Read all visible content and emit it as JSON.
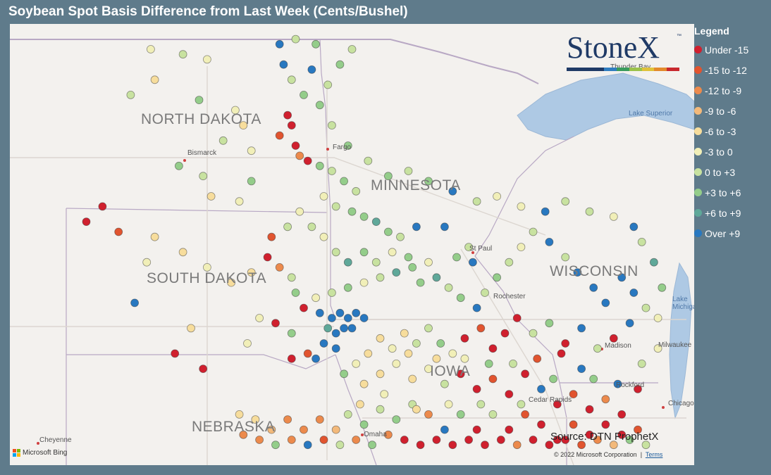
{
  "title": "Soybean Spot Basis Difference from Last Week (Cents/Bushel)",
  "legend": {
    "title": "Legend",
    "items": [
      {
        "label": "Under -15",
        "color": "#d0202e"
      },
      {
        "label": "-15 to -12",
        "color": "#e1542f"
      },
      {
        "label": "-12 to -9",
        "color": "#ec8a4c"
      },
      {
        "label": "-9 to -6",
        "color": "#f3b97a"
      },
      {
        "label": "-6 to -3",
        "color": "#f7dd9c"
      },
      {
        "label": "-3 to 0",
        "color": "#f1efb8"
      },
      {
        "label": "0 to +3",
        "color": "#c8e2a0"
      },
      {
        "label": "+3 to +6",
        "color": "#94cd8a"
      },
      {
        "label": "+6 to +9",
        "color": "#5fa899"
      },
      {
        "label": "Over +9",
        "color": "#2878c0"
      }
    ]
  },
  "map": {
    "states": [
      "NORTH DAKOTA",
      "MINNESOTA",
      "SOUTH DAKOTA",
      "WISCONSIN",
      "IOWA",
      "NEBRASKA"
    ],
    "cities": [
      "Bismarck",
      "Fargo",
      "St Paul",
      "Rochester",
      "Madison",
      "Milwaukee",
      "Rockford",
      "Cedar Rapids",
      "Omaha",
      "Chicago",
      "Cheyenne",
      "Thunder Bay"
    ],
    "lakes": [
      "Lake Superior",
      "Lake Michigan"
    ],
    "source_text": "Source: DTN ProphetX",
    "copyright_text": "© 2022 Microsoft Corporation",
    "terms_text": "Terms",
    "bing_text": "Microsoft Bing"
  },
  "logo": {
    "text": "StoneX",
    "tm": "™",
    "stripe_colors": [
      "#1f3a66",
      "#1f3a66",
      "#1f3a66",
      "#2f7ec0",
      "#3a9c5c",
      "#9cc24a",
      "#e0c23a",
      "#e38a2c",
      "#c8282e"
    ]
  },
  "markers": [
    {
      "lon": -100.5,
      "lat": 48.8,
      "cat": 5
    },
    {
      "lon": -99.7,
      "lat": 48.7,
      "cat": 6
    },
    {
      "lon": -99.1,
      "lat": 48.6,
      "cat": 5
    },
    {
      "lon": -100.4,
      "lat": 48.2,
      "cat": 4
    },
    {
      "lon": -101.0,
      "lat": 47.9,
      "cat": 6
    },
    {
      "lon": -99.3,
      "lat": 47.8,
      "cat": 7
    },
    {
      "lon": -98.4,
      "lat": 47.6,
      "cat": 5
    },
    {
      "lon": -98.2,
      "lat": 47.3,
      "cat": 4
    },
    {
      "lon": -98.7,
      "lat": 47.0,
      "cat": 6
    },
    {
      "lon": -98.0,
      "lat": 46.8,
      "cat": 5
    },
    {
      "lon": -99.8,
      "lat": 46.5,
      "cat": 7
    },
    {
      "lon": -99.2,
      "lat": 46.3,
      "cat": 6
    },
    {
      "lon": -98.0,
      "lat": 46.2,
      "cat": 7
    },
    {
      "lon": -99.0,
      "lat": 45.9,
      "cat": 4
    },
    {
      "lon": -98.3,
      "lat": 45.8,
      "cat": 5
    },
    {
      "lon": -97.3,
      "lat": 48.9,
      "cat": 9
    },
    {
      "lon": -97.2,
      "lat": 48.5,
      "cat": 9
    },
    {
      "lon": -96.5,
      "lat": 48.4,
      "cat": 9
    },
    {
      "lon": -97.0,
      "lat": 48.2,
      "cat": 6
    },
    {
      "lon": -96.7,
      "lat": 47.9,
      "cat": 7
    },
    {
      "lon": -97.1,
      "lat": 47.5,
      "cat": 0
    },
    {
      "lon": -97.0,
      "lat": 47.3,
      "cat": 0
    },
    {
      "lon": -97.3,
      "lat": 47.1,
      "cat": 1
    },
    {
      "lon": -96.9,
      "lat": 46.9,
      "cat": 0
    },
    {
      "lon": -96.8,
      "lat": 46.7,
      "cat": 2
    },
    {
      "lon": -96.6,
      "lat": 46.6,
      "cat": 0
    },
    {
      "lon": -96.3,
      "lat": 46.5,
      "cat": 7
    },
    {
      "lon": -96.0,
      "lat": 46.4,
      "cat": 6
    },
    {
      "lon": -95.7,
      "lat": 46.2,
      "cat": 7
    },
    {
      "lon": -95.4,
      "lat": 46.0,
      "cat": 6
    },
    {
      "lon": -96.2,
      "lat": 45.9,
      "cat": 5
    },
    {
      "lon": -95.9,
      "lat": 45.7,
      "cat": 6
    },
    {
      "lon": -95.5,
      "lat": 45.6,
      "cat": 7
    },
    {
      "lon": -95.2,
      "lat": 45.5,
      "cat": 7
    },
    {
      "lon": -94.9,
      "lat": 45.4,
      "cat": 8
    },
    {
      "lon": -94.6,
      "lat": 45.2,
      "cat": 7
    },
    {
      "lon": -94.3,
      "lat": 45.1,
      "cat": 6
    },
    {
      "lon": -93.9,
      "lat": 45.3,
      "cat": 9
    },
    {
      "lon": -93.2,
      "lat": 45.3,
      "cat": 9
    },
    {
      "lon": -92.6,
      "lat": 44.9,
      "cat": 6
    },
    {
      "lon": -92.9,
      "lat": 44.7,
      "cat": 7
    },
    {
      "lon": -92.5,
      "lat": 44.6,
      "cat": 9
    },
    {
      "lon": -93.6,
      "lat": 44.6,
      "cat": 5
    },
    {
      "lon": -94.0,
      "lat": 44.5,
      "cat": 7
    },
    {
      "lon": -94.4,
      "lat": 44.4,
      "cat": 8
    },
    {
      "lon": -94.8,
      "lat": 44.3,
      "cat": 6
    },
    {
      "lon": -95.2,
      "lat": 44.2,
      "cat": 5
    },
    {
      "lon": -95.6,
      "lat": 44.1,
      "cat": 7
    },
    {
      "lon": -96.0,
      "lat": 44.0,
      "cat": 6
    },
    {
      "lon": -96.4,
      "lat": 43.9,
      "cat": 5
    },
    {
      "lon": -96.7,
      "lat": 43.7,
      "cat": 0
    },
    {
      "lon": -96.3,
      "lat": 43.6,
      "cat": 9
    },
    {
      "lon": -96.0,
      "lat": 43.5,
      "cat": 9
    },
    {
      "lon": -95.8,
      "lat": 43.6,
      "cat": 9
    },
    {
      "lon": -95.6,
      "lat": 43.5,
      "cat": 9
    },
    {
      "lon": -95.4,
      "lat": 43.6,
      "cat": 9
    },
    {
      "lon": -95.2,
      "lat": 43.5,
      "cat": 9
    },
    {
      "lon": -95.7,
      "lat": 43.3,
      "cat": 9
    },
    {
      "lon": -95.5,
      "lat": 43.3,
      "cat": 9
    },
    {
      "lon": -95.9,
      "lat": 43.2,
      "cat": 9
    },
    {
      "lon": -96.1,
      "lat": 43.3,
      "cat": 8
    },
    {
      "lon": -96.2,
      "lat": 43.0,
      "cat": 9
    },
    {
      "lon": -95.9,
      "lat": 42.9,
      "cat": 9
    },
    {
      "lon": -96.4,
      "lat": 42.7,
      "cat": 9
    },
    {
      "lon": -96.6,
      "lat": 42.8,
      "cat": 1
    },
    {
      "lon": -97.0,
      "lat": 43.2,
      "cat": 7
    },
    {
      "lon": -97.4,
      "lat": 43.4,
      "cat": 0
    },
    {
      "lon": -97.8,
      "lat": 43.5,
      "cat": 5
    },
    {
      "lon": -97.0,
      "lat": 42.7,
      "cat": 0
    },
    {
      "lon": -98.1,
      "lat": 43.0,
      "cat": 5
    },
    {
      "lon": -99.5,
      "lat": 43.3,
      "cat": 4
    },
    {
      "lon": -100.9,
      "lat": 43.8,
      "cat": 9
    },
    {
      "lon": -99.9,
      "lat": 42.8,
      "cat": 0
    },
    {
      "lon": -99.2,
      "lat": 42.5,
      "cat": 0
    },
    {
      "lon": -101.7,
      "lat": 45.7,
      "cat": 0
    },
    {
      "lon": -102.1,
      "lat": 45.4,
      "cat": 0
    },
    {
      "lon": -101.3,
      "lat": 45.2,
      "cat": 1
    },
    {
      "lon": -100.4,
      "lat": 45.1,
      "cat": 4
    },
    {
      "lon": -100.6,
      "lat": 44.6,
      "cat": 5
    },
    {
      "lon": -99.7,
      "lat": 44.8,
      "cat": 4
    },
    {
      "lon": -99.1,
      "lat": 44.5,
      "cat": 5
    },
    {
      "lon": -98.5,
      "lat": 44.2,
      "cat": 4
    },
    {
      "lon": -98.0,
      "lat": 44.4,
      "cat": 4
    },
    {
      "lon": -97.6,
      "lat": 44.7,
      "cat": 0
    },
    {
      "lon": -97.3,
      "lat": 44.5,
      "cat": 2
    },
    {
      "lon": -97.0,
      "lat": 44.3,
      "cat": 6
    },
    {
      "lon": -96.9,
      "lat": 44.0,
      "cat": 7
    },
    {
      "lon": -97.5,
      "lat": 45.1,
      "cat": 1
    },
    {
      "lon": -97.1,
      "lat": 45.3,
      "cat": 6
    },
    {
      "lon": -96.8,
      "lat": 45.6,
      "cat": 5
    },
    {
      "lon": -96.5,
      "lat": 45.3,
      "cat": 6
    },
    {
      "lon": -96.2,
      "lat": 45.1,
      "cat": 5
    },
    {
      "lon": -95.9,
      "lat": 44.8,
      "cat": 6
    },
    {
      "lon": -95.6,
      "lat": 44.6,
      "cat": 8
    },
    {
      "lon": -95.2,
      "lat": 44.8,
      "cat": 7
    },
    {
      "lon": -94.9,
      "lat": 44.6,
      "cat": 6
    },
    {
      "lon": -94.5,
      "lat": 44.8,
      "cat": 5
    },
    {
      "lon": -94.1,
      "lat": 44.7,
      "cat": 7
    },
    {
      "lon": -93.8,
      "lat": 44.2,
      "cat": 7
    },
    {
      "lon": -93.4,
      "lat": 44.3,
      "cat": 8
    },
    {
      "lon": -93.1,
      "lat": 44.1,
      "cat": 6
    },
    {
      "lon": -92.8,
      "lat": 43.9,
      "cat": 7
    },
    {
      "lon": -92.4,
      "lat": 43.7,
      "cat": 9
    },
    {
      "lon": -92.2,
      "lat": 44.0,
      "cat": 6
    },
    {
      "lon": -91.9,
      "lat": 44.3,
      "cat": 7
    },
    {
      "lon": -91.6,
      "lat": 44.6,
      "cat": 6
    },
    {
      "lon": -91.3,
      "lat": 44.9,
      "cat": 5
    },
    {
      "lon": -91.0,
      "lat": 45.2,
      "cat": 6
    },
    {
      "lon": -90.6,
      "lat": 45.0,
      "cat": 9
    },
    {
      "lon": -90.2,
      "lat": 44.7,
      "cat": 6
    },
    {
      "lon": -89.9,
      "lat": 44.4,
      "cat": 9
    },
    {
      "lon": -89.5,
      "lat": 44.1,
      "cat": 9
    },
    {
      "lon": -89.2,
      "lat": 43.8,
      "cat": 9
    },
    {
      "lon": -88.8,
      "lat": 44.3,
      "cat": 9
    },
    {
      "lon": -88.5,
      "lat": 44.0,
      "cat": 9
    },
    {
      "lon": -88.2,
      "lat": 43.7,
      "cat": 6
    },
    {
      "lon": -88.6,
      "lat": 43.4,
      "cat": 9
    },
    {
      "lon": -89.0,
      "lat": 43.1,
      "cat": 0
    },
    {
      "lon": -89.4,
      "lat": 42.9,
      "cat": 6
    },
    {
      "lon": -89.8,
      "lat": 43.3,
      "cat": 9
    },
    {
      "lon": -90.2,
      "lat": 43.0,
      "cat": 0
    },
    {
      "lon": -90.6,
      "lat": 43.4,
      "cat": 7
    },
    {
      "lon": -91.0,
      "lat": 43.2,
      "cat": 6
    },
    {
      "lon": -91.4,
      "lat": 43.5,
      "cat": 0
    },
    {
      "lon": -91.7,
      "lat": 43.2,
      "cat": 0
    },
    {
      "lon": -92.0,
      "lat": 42.9,
      "cat": 0
    },
    {
      "lon": -92.3,
      "lat": 43.3,
      "cat": 1
    },
    {
      "lon": -92.7,
      "lat": 43.1,
      "cat": 0
    },
    {
      "lon": -93.0,
      "lat": 42.8,
      "cat": 5
    },
    {
      "lon": -93.3,
      "lat": 43.0,
      "cat": 7
    },
    {
      "lon": -93.6,
      "lat": 43.3,
      "cat": 6
    },
    {
      "lon": -93.9,
      "lat": 43.0,
      "cat": 6
    },
    {
      "lon": -94.2,
      "lat": 43.2,
      "cat": 4
    },
    {
      "lon": -94.5,
      "lat": 42.9,
      "cat": 5
    },
    {
      "lon": -94.8,
      "lat": 43.1,
      "cat": 4
    },
    {
      "lon": -95.1,
      "lat": 42.8,
      "cat": 4
    },
    {
      "lon": -95.4,
      "lat": 42.6,
      "cat": 5
    },
    {
      "lon": -95.7,
      "lat": 42.4,
      "cat": 7
    },
    {
      "lon": -95.2,
      "lat": 42.2,
      "cat": 4
    },
    {
      "lon": -94.8,
      "lat": 42.4,
      "cat": 4
    },
    {
      "lon": -94.4,
      "lat": 42.6,
      "cat": 5
    },
    {
      "lon": -94.0,
      "lat": 42.3,
      "cat": 4
    },
    {
      "lon": -93.6,
      "lat": 42.5,
      "cat": 5
    },
    {
      "lon": -93.2,
      "lat": 42.2,
      "cat": 6
    },
    {
      "lon": -92.8,
      "lat": 42.4,
      "cat": 0
    },
    {
      "lon": -92.4,
      "lat": 42.1,
      "cat": 0
    },
    {
      "lon": -92.0,
      "lat": 42.3,
      "cat": 1
    },
    {
      "lon": -91.6,
      "lat": 42.0,
      "cat": 0
    },
    {
      "lon": -91.2,
      "lat": 42.4,
      "cat": 0
    },
    {
      "lon": -90.8,
      "lat": 42.1,
      "cat": 9
    },
    {
      "lon": -90.4,
      "lat": 41.8,
      "cat": 0
    },
    {
      "lon": -90.0,
      "lat": 42.0,
      "cat": 1
    },
    {
      "lon": -89.6,
      "lat": 41.7,
      "cat": 0
    },
    {
      "lon": -89.2,
      "lat": 41.9,
      "cat": 2
    },
    {
      "lon": -88.8,
      "lat": 41.6,
      "cat": 0
    },
    {
      "lon": -88.4,
      "lat": 41.3,
      "cat": 1
    },
    {
      "lon": -88.8,
      "lat": 41.2,
      "cat": 0
    },
    {
      "lon": -89.2,
      "lat": 41.4,
      "cat": 0
    },
    {
      "lon": -89.6,
      "lat": 41.2,
      "cat": 0
    },
    {
      "lon": -90.0,
      "lat": 41.4,
      "cat": 1
    },
    {
      "lon": -90.4,
      "lat": 41.1,
      "cat": 0
    },
    {
      "lon": -90.8,
      "lat": 41.4,
      "cat": 0
    },
    {
      "lon": -91.2,
      "lat": 41.6,
      "cat": 1
    },
    {
      "lon": -91.6,
      "lat": 41.3,
      "cat": 0
    },
    {
      "lon": -92.0,
      "lat": 41.6,
      "cat": 6
    },
    {
      "lon": -92.4,
      "lat": 41.3,
      "cat": 0
    },
    {
      "lon": -92.8,
      "lat": 41.6,
      "cat": 7
    },
    {
      "lon": -93.2,
      "lat": 41.3,
      "cat": 9
    },
    {
      "lon": -93.6,
      "lat": 41.6,
      "cat": 2
    },
    {
      "lon": -94.0,
      "lat": 41.8,
      "cat": 6
    },
    {
      "lon": -94.4,
      "lat": 41.5,
      "cat": 7
    },
    {
      "lon": -94.8,
      "lat": 41.7,
      "cat": 6
    },
    {
      "lon": -95.2,
      "lat": 41.4,
      "cat": 7
    },
    {
      "lon": -95.6,
      "lat": 41.6,
      "cat": 6
    },
    {
      "lon": -95.9,
      "lat": 41.3,
      "cat": 3
    },
    {
      "lon": -96.3,
      "lat": 41.5,
      "cat": 2
    },
    {
      "lon": -96.7,
      "lat": 41.3,
      "cat": 2
    },
    {
      "lon": -97.1,
      "lat": 41.5,
      "cat": 2
    },
    {
      "lon": -97.5,
      "lat": 41.3,
      "cat": 3
    },
    {
      "lon": -97.9,
      "lat": 41.5,
      "cat": 4
    },
    {
      "lon": -98.3,
      "lat": 41.6,
      "cat": 4
    },
    {
      "lon": -98.2,
      "lat": 41.2,
      "cat": 2
    },
    {
      "lon": -97.8,
      "lat": 41.1,
      "cat": 2
    },
    {
      "lon": -97.4,
      "lat": 41.0,
      "cat": 7
    },
    {
      "lon": -97.0,
      "lat": 41.1,
      "cat": 2
    },
    {
      "lon": -96.6,
      "lat": 41.0,
      "cat": 9
    },
    {
      "lon": -96.2,
      "lat": 41.1,
      "cat": 1
    },
    {
      "lon": -95.8,
      "lat": 41.0,
      "cat": 6
    },
    {
      "lon": -95.4,
      "lat": 41.1,
      "cat": 2
    },
    {
      "lon": -95.0,
      "lat": 41.0,
      "cat": 7
    },
    {
      "lon": -94.6,
      "lat": 41.2,
      "cat": 2
    },
    {
      "lon": -94.2,
      "lat": 41.1,
      "cat": 0
    },
    {
      "lon": -93.8,
      "lat": 41.0,
      "cat": 0
    },
    {
      "lon": -93.4,
      "lat": 41.1,
      "cat": 0
    },
    {
      "lon": -93.0,
      "lat": 41.0,
      "cat": 0
    },
    {
      "lon": -92.6,
      "lat": 41.1,
      "cat": 0
    },
    {
      "lon": -92.2,
      "lat": 41.0,
      "cat": 0
    },
    {
      "lon": -91.8,
      "lat": 41.1,
      "cat": 0
    },
    {
      "lon": -91.4,
      "lat": 41.0,
      "cat": 2
    },
    {
      "lon": -91.0,
      "lat": 41.1,
      "cat": 0
    },
    {
      "lon": -90.6,
      "lat": 41.0,
      "cat": 0
    },
    {
      "lon": -90.2,
      "lat": 41.1,
      "cat": 0
    },
    {
      "lon": -89.8,
      "lat": 41.0,
      "cat": 1
    },
    {
      "lon": -89.4,
      "lat": 41.1,
      "cat": 2
    },
    {
      "lon": -89.0,
      "lat": 41.0,
      "cat": 3
    },
    {
      "lon": -88.6,
      "lat": 41.1,
      "cat": 7
    },
    {
      "lon": -88.2,
      "lat": 41.0,
      "cat": 6
    },
    {
      "lon": -89.8,
      "lat": 42.5,
      "cat": 9
    },
    {
      "lon": -90.3,
      "lat": 42.8,
      "cat": 0
    },
    {
      "lon": -90.9,
      "lat": 42.7,
      "cat": 1
    },
    {
      "lon": -91.5,
      "lat": 42.6,
      "cat": 6
    },
    {
      "lon": -92.1,
      "lat": 42.6,
      "cat": 7
    },
    {
      "lon": -92.7,
      "lat": 42.7,
      "cat": 5
    },
    {
      "lon": -93.4,
      "lat": 42.7,
      "cat": 4
    },
    {
      "lon": -94.1,
      "lat": 42.8,
      "cat": 4
    },
    {
      "lon": -94.7,
      "lat": 42.0,
      "cat": 5
    },
    {
      "lon": -95.3,
      "lat": 41.8,
      "cat": 4
    },
    {
      "lon": -93.9,
      "lat": 41.7,
      "cat": 4
    },
    {
      "lon": -93.1,
      "lat": 41.8,
      "cat": 5
    },
    {
      "lon": -92.3,
      "lat": 41.8,
      "cat": 6
    },
    {
      "lon": -91.3,
      "lat": 41.8,
      "cat": 6
    },
    {
      "lon": -90.5,
      "lat": 42.3,
      "cat": 7
    },
    {
      "lon": -89.5,
      "lat": 42.3,
      "cat": 7
    },
    {
      "lon": -88.9,
      "lat": 42.2,
      "cat": 9
    },
    {
      "lon": -88.4,
      "lat": 42.1,
      "cat": 0
    },
    {
      "lon": -88.3,
      "lat": 42.6,
      "cat": 6
    },
    {
      "lon": -87.9,
      "lat": 42.9,
      "cat": 5
    },
    {
      "lon": -87.9,
      "lat": 43.5,
      "cat": 5
    },
    {
      "lon": -87.8,
      "lat": 44.1,
      "cat": 7
    },
    {
      "lon": -88.0,
      "lat": 44.6,
      "cat": 8
    },
    {
      "lon": -88.3,
      "lat": 45.0,
      "cat": 6
    },
    {
      "lon": -88.5,
      "lat": 45.3,
      "cat": 9
    },
    {
      "lon": -89.0,
      "lat": 45.5,
      "cat": 5
    },
    {
      "lon": -89.6,
      "lat": 45.6,
      "cat": 6
    },
    {
      "lon": -90.2,
      "lat": 45.8,
      "cat": 6
    },
    {
      "lon": -90.7,
      "lat": 45.6,
      "cat": 9
    },
    {
      "lon": -91.3,
      "lat": 45.7,
      "cat": 5
    },
    {
      "lon": -91.9,
      "lat": 45.9,
      "cat": 5
    },
    {
      "lon": -92.4,
      "lat": 45.8,
      "cat": 6
    },
    {
      "lon": -93.0,
      "lat": 46.0,
      "cat": 9
    },
    {
      "lon": -93.6,
      "lat": 46.2,
      "cat": 7
    },
    {
      "lon": -94.1,
      "lat": 46.4,
      "cat": 6
    },
    {
      "lon": -94.6,
      "lat": 46.3,
      "cat": 7
    },
    {
      "lon": -95.1,
      "lat": 46.6,
      "cat": 6
    },
    {
      "lon": -95.6,
      "lat": 46.9,
      "cat": 7
    },
    {
      "lon": -96.0,
      "lat": 47.3,
      "cat": 6
    },
    {
      "lon": -96.3,
      "lat": 47.7,
      "cat": 7
    },
    {
      "lon": -96.1,
      "lat": 48.1,
      "cat": 6
    },
    {
      "lon": -95.8,
      "lat": 48.5,
      "cat": 7
    },
    {
      "lon": -95.5,
      "lat": 48.8,
      "cat": 6
    },
    {
      "lon": -96.9,
      "lat": 49.0,
      "cat": 6
    },
    {
      "lon": -96.4,
      "lat": 48.9,
      "cat": 7
    }
  ]
}
